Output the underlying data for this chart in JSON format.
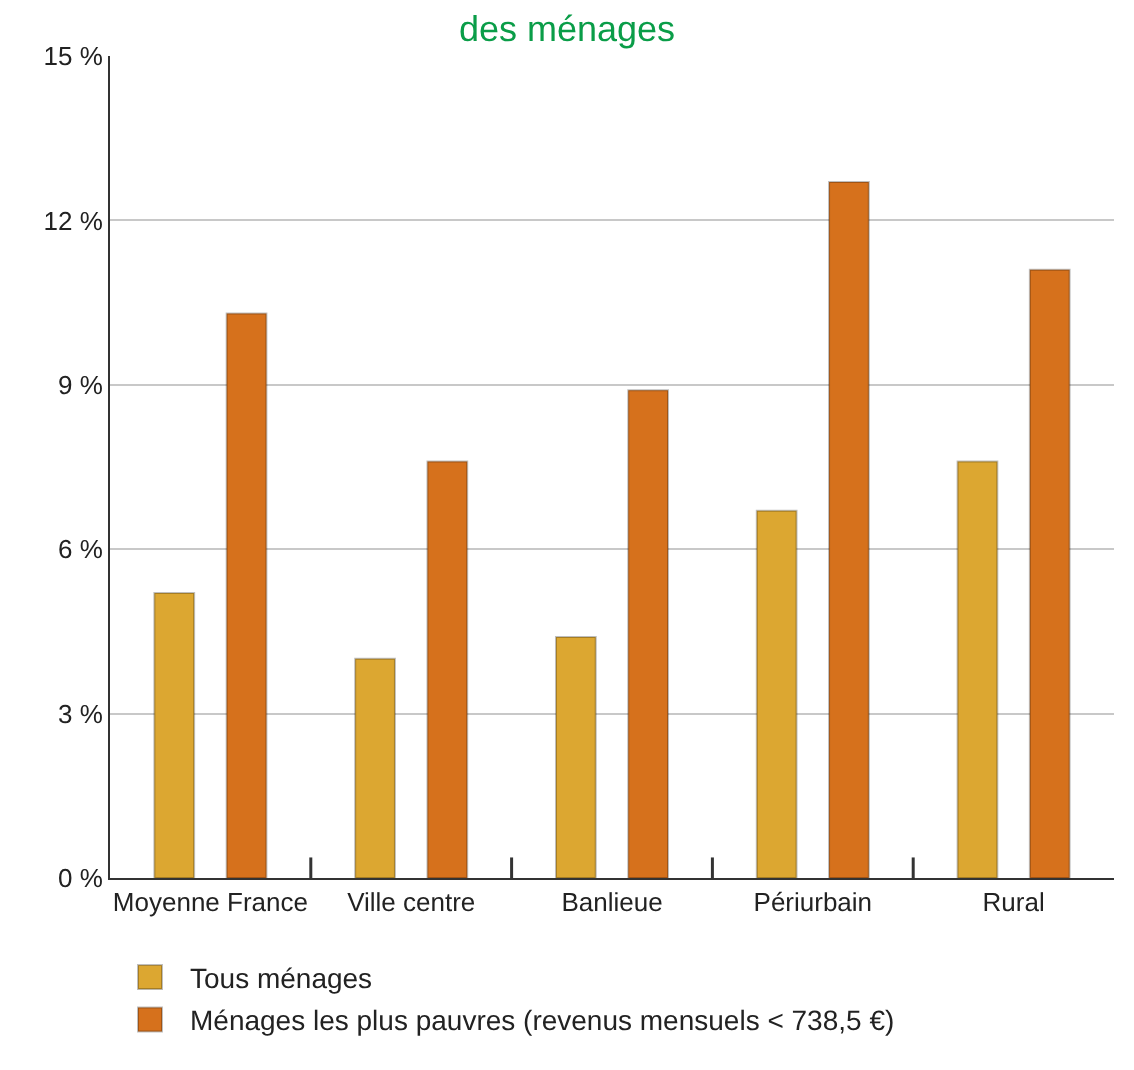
{
  "chart_data": {
    "type": "bar",
    "title": "des ménages",
    "categories": [
      "Moyenne France",
      "Ville centre",
      "Banlieue",
      "Périurbain",
      "Rural"
    ],
    "series": [
      {
        "name": "Tous ménages",
        "color": "#dca731",
        "values": [
          5.2,
          4.0,
          4.4,
          6.7,
          7.6
        ]
      },
      {
        "name": "Ménages les plus pauvres (revenus mensuels < 738,5 €)",
        "color": "#d6711c",
        "values": [
          10.3,
          7.6,
          8.9,
          12.7,
          11.1
        ]
      }
    ],
    "ylim": [
      0,
      15
    ],
    "yticks": [
      {
        "value": 0,
        "label": "0 %"
      },
      {
        "value": 3,
        "label": "3 %"
      },
      {
        "value": 6,
        "label": "6 %"
      },
      {
        "value": 9,
        "label": "9 %"
      },
      {
        "value": 12,
        "label": "12 %"
      },
      {
        "value": 15,
        "label": "15 %"
      }
    ],
    "grid": "y",
    "legend": "bottom left"
  }
}
